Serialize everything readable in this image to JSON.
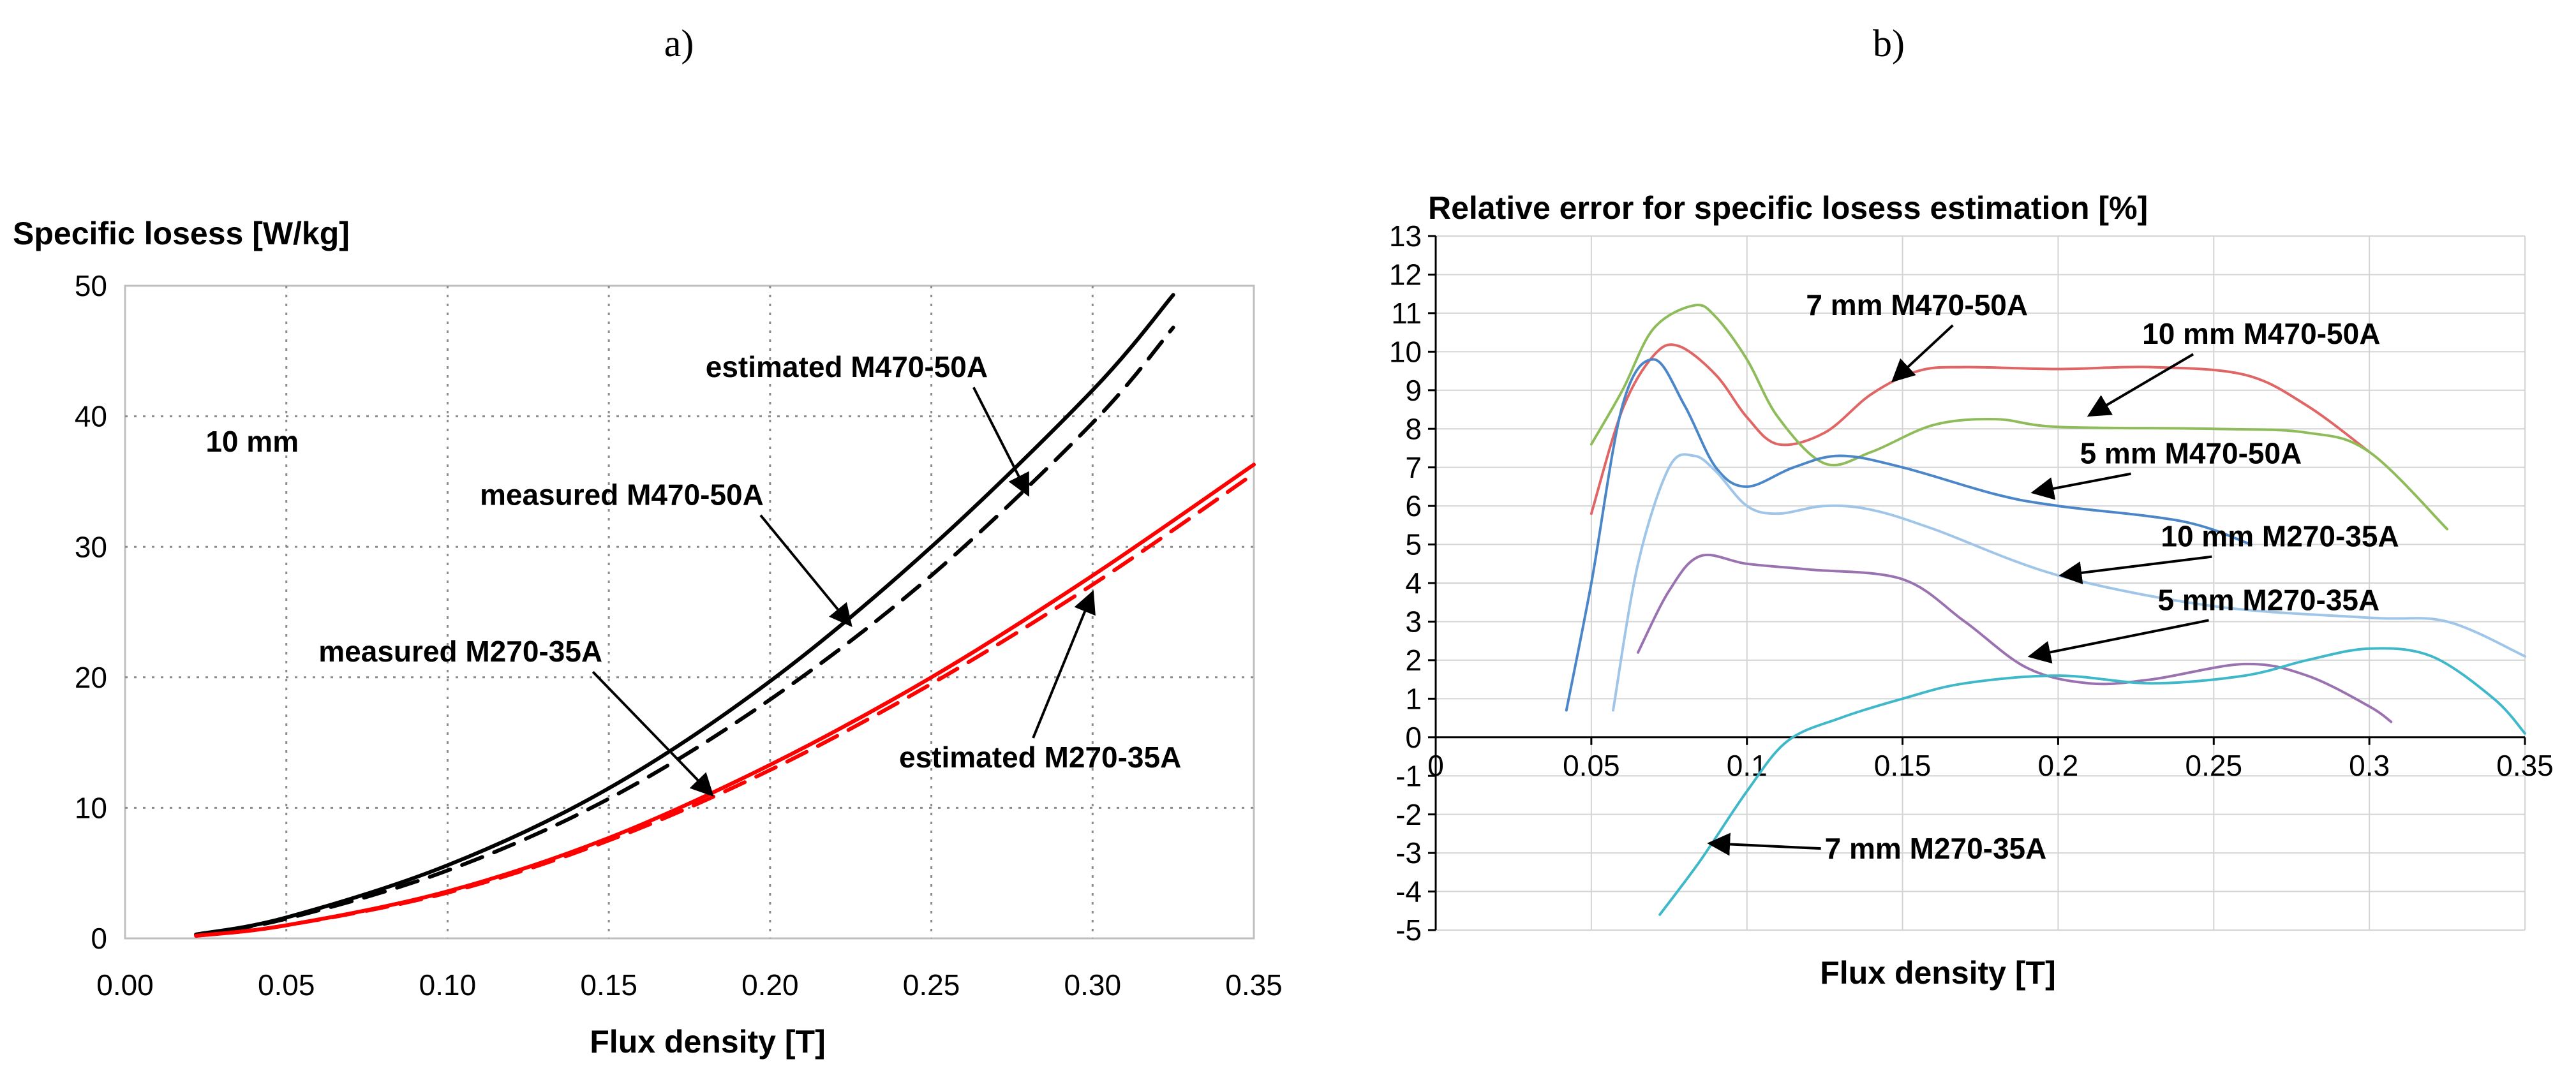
{
  "panels": [
    {
      "panel_label": "a)",
      "chart_data": {
        "type": "line",
        "title": "Specific losess [W/kg]",
        "xlabel": "Flux density [T]",
        "ylabel": "Specific losess [W/kg]",
        "xlim": [
          0,
          0.35
        ],
        "ylim": [
          0,
          50
        ],
        "x_ticks": [
          0,
          0.05,
          0.1,
          0.15,
          0.2,
          0.25,
          0.3,
          0.35
        ],
        "x_tick_labels": [
          "0.00",
          "0.05",
          "0.10",
          "0.15",
          "0.20",
          "0.25",
          "0.30",
          "0.35"
        ],
        "y_ticks": [
          0,
          10,
          20,
          30,
          40,
          50
        ],
        "y_tick_labels": [
          "0",
          "10",
          "20",
          "30",
          "40",
          "50"
        ],
        "grid": "dotted",
        "legend": "none",
        "series": [
          {
            "key": "measured_m470",
            "color": "#000000",
            "dash": "solid",
            "x": [
              0.022,
              0.05,
              0.1,
              0.15,
              0.2,
              0.25,
              0.3,
              0.325
            ],
            "y": [
              0.3,
              1.6,
              5.6,
              11.5,
              19.7,
              30.0,
              42.0,
              49.3
            ]
          },
          {
            "key": "estimated_m470",
            "color": "#000000",
            "dash": "dashed",
            "x": [
              0.022,
              0.05,
              0.1,
              0.15,
              0.2,
              0.25,
              0.3,
              0.325
            ],
            "y": [
              0.3,
              1.5,
              5.2,
              10.7,
              18.3,
              27.8,
              39.5,
              46.8
            ]
          },
          {
            "key": "measured_m270",
            "color": "#ff0000",
            "dash": "solid",
            "x": [
              0.022,
              0.05,
              0.1,
              0.15,
              0.2,
              0.25,
              0.3,
              0.35
            ],
            "y": [
              0.2,
              1.0,
              3.6,
              7.7,
              13.3,
              20.0,
              27.8,
              36.3
            ]
          },
          {
            "key": "estimated_m270",
            "color": "#ff0000",
            "dash": "dashed",
            "x": [
              0.022,
              0.05,
              0.1,
              0.15,
              0.2,
              0.25,
              0.3,
              0.35
            ],
            "y": [
              0.2,
              1.0,
              3.5,
              7.5,
              12.9,
              19.5,
              27.1,
              35.6
            ]
          }
        ],
        "annotations": [
          {
            "text": "10 mm",
            "at": [
              0.025,
              37.3
            ],
            "arrow_to": null
          },
          {
            "text": "estimated M470-50A",
            "at": [
              0.18,
              43.0
            ],
            "arrow_to": [
              0.28,
              34.0
            ]
          },
          {
            "text": "measured M470-50A",
            "at": [
              0.11,
              33.2
            ],
            "arrow_to": [
              0.225,
              24.0
            ]
          },
          {
            "text": "measured M270-35A",
            "at": [
              0.06,
              21.2
            ],
            "arrow_to": [
              0.182,
              11.0
            ]
          },
          {
            "text": "estimated M270-35A",
            "at": [
              0.24,
              13.1
            ],
            "arrow_to": [
              0.3,
              26.5
            ]
          }
        ]
      }
    },
    {
      "panel_label": "b)",
      "chart_data": {
        "type": "line",
        "title": "Relative error for specific losess estimation [%]",
        "xlabel": "Flux density [T]",
        "ylabel": "Relative error for specific losess estimation [%]",
        "xlim": [
          0,
          0.35
        ],
        "ylim": [
          -5,
          13
        ],
        "x_ticks": [
          0,
          0.05,
          0.1,
          0.15,
          0.2,
          0.25,
          0.3,
          0.35
        ],
        "x_tick_labels": [
          "0",
          "0.05",
          "0.1",
          "0.15",
          "0.2",
          "0.25",
          "0.3",
          "0.35"
        ],
        "y_ticks": [
          -5,
          -4,
          -3,
          -2,
          -1,
          0,
          1,
          2,
          3,
          4,
          5,
          6,
          7,
          8,
          9,
          10,
          11,
          12,
          13
        ],
        "y_tick_labels": [
          "-5",
          "-4",
          "-3",
          "-2",
          "-1",
          "0",
          "1",
          "2",
          "3",
          "4",
          "5",
          "6",
          "7",
          "8",
          "9",
          "10",
          "11",
          "12",
          "13"
        ],
        "grid": "solid",
        "legend": "none",
        "series": [
          {
            "key": "7mm_m470",
            "color": "#e06666",
            "x": [
              0.05,
              0.06,
              0.07,
              0.078,
              0.09,
              0.1,
              0.11,
              0.125,
              0.14,
              0.155,
              0.17,
              0.2,
              0.23,
              0.26,
              0.28,
              0.3
            ],
            "y": [
              5.8,
              8.5,
              9.9,
              10.15,
              9.4,
              8.3,
              7.6,
              7.9,
              8.9,
              9.5,
              9.6,
              9.55,
              9.6,
              9.4,
              8.6,
              7.4
            ]
          },
          {
            "key": "10mm_m470",
            "color": "#8fbc5a",
            "x": [
              0.05,
              0.06,
              0.07,
              0.083,
              0.09,
              0.1,
              0.11,
              0.125,
              0.14,
              0.16,
              0.18,
              0.2,
              0.25,
              0.28,
              0.3,
              0.325
            ],
            "y": [
              7.6,
              9.0,
              10.6,
              11.2,
              10.9,
              9.8,
              8.3,
              7.1,
              7.4,
              8.1,
              8.25,
              8.05,
              8.0,
              7.9,
              7.4,
              5.4
            ]
          },
          {
            "key": "5mm_m470",
            "color": "#4a86c8",
            "x": [
              0.042,
              0.05,
              0.06,
              0.07,
              0.08,
              0.09,
              0.1,
              0.115,
              0.13,
              0.15,
              0.18,
              0.2,
              0.24,
              0.262
            ],
            "y": [
              0.7,
              4.0,
              8.6,
              9.8,
              8.6,
              7.0,
              6.5,
              7.0,
              7.3,
              7.0,
              6.3,
              6.0,
              5.6,
              5.0
            ]
          },
          {
            "key": "10mm_m270",
            "color": "#9fc5e8",
            "x": [
              0.057,
              0.065,
              0.075,
              0.083,
              0.09,
              0.1,
              0.11,
              0.125,
              0.14,
              0.16,
              0.2,
              0.25,
              0.3,
              0.325,
              0.35
            ],
            "y": [
              0.7,
              4.5,
              7.0,
              7.3,
              6.9,
              6.0,
              5.8,
              6.0,
              5.9,
              5.4,
              4.2,
              3.4,
              3.1,
              3.0,
              2.1
            ]
          },
          {
            "key": "5mm_m270",
            "color": "#9b72b0",
            "x": [
              0.065,
              0.075,
              0.085,
              0.1,
              0.12,
              0.15,
              0.17,
              0.19,
              0.21,
              0.23,
              0.26,
              0.28,
              0.3,
              0.307
            ],
            "y": [
              2.2,
              3.8,
              4.7,
              4.5,
              4.35,
              4.1,
              3.0,
              1.8,
              1.4,
              1.5,
              1.9,
              1.6,
              0.8,
              0.4
            ]
          },
          {
            "key": "7mm_m270",
            "color": "#3fb8c9",
            "x": [
              0.072,
              0.085,
              0.1,
              0.113,
              0.13,
              0.15,
              0.17,
              0.2,
              0.23,
              0.26,
              0.28,
              0.3,
              0.32,
              0.34,
              0.35
            ],
            "y": [
              -4.6,
              -3.2,
              -1.4,
              -0.1,
              0.5,
              1.0,
              1.4,
              1.6,
              1.4,
              1.6,
              2.0,
              2.3,
              2.1,
              1.0,
              0.1
            ]
          }
        ],
        "annotations": [
          {
            "text": "7 mm M470-50A",
            "at": [
              0.119,
              10.95
            ],
            "arrow_to": [
              0.147,
              9.25
            ]
          },
          {
            "text": "10 mm M470-50A",
            "at": [
              0.227,
              10.2
            ],
            "arrow_to": [
              0.21,
              8.35
            ]
          },
          {
            "text": "5 mm M470-50A",
            "at": [
              0.207,
              7.1
            ],
            "arrow_to": [
              0.192,
              6.35
            ]
          },
          {
            "text": "10 mm M270-35A",
            "at": [
              0.233,
              4.95
            ],
            "arrow_to": [
              0.201,
              4.2
            ]
          },
          {
            "text": "5 mm M270-35A",
            "at": [
              0.232,
              3.3
            ],
            "arrow_to": [
              0.191,
              2.1
            ]
          },
          {
            "text": "7 mm M270-35A",
            "at": [
              0.125,
              -3.15
            ],
            "arrow_to": [
              0.088,
              -2.75
            ]
          }
        ]
      }
    }
  ]
}
